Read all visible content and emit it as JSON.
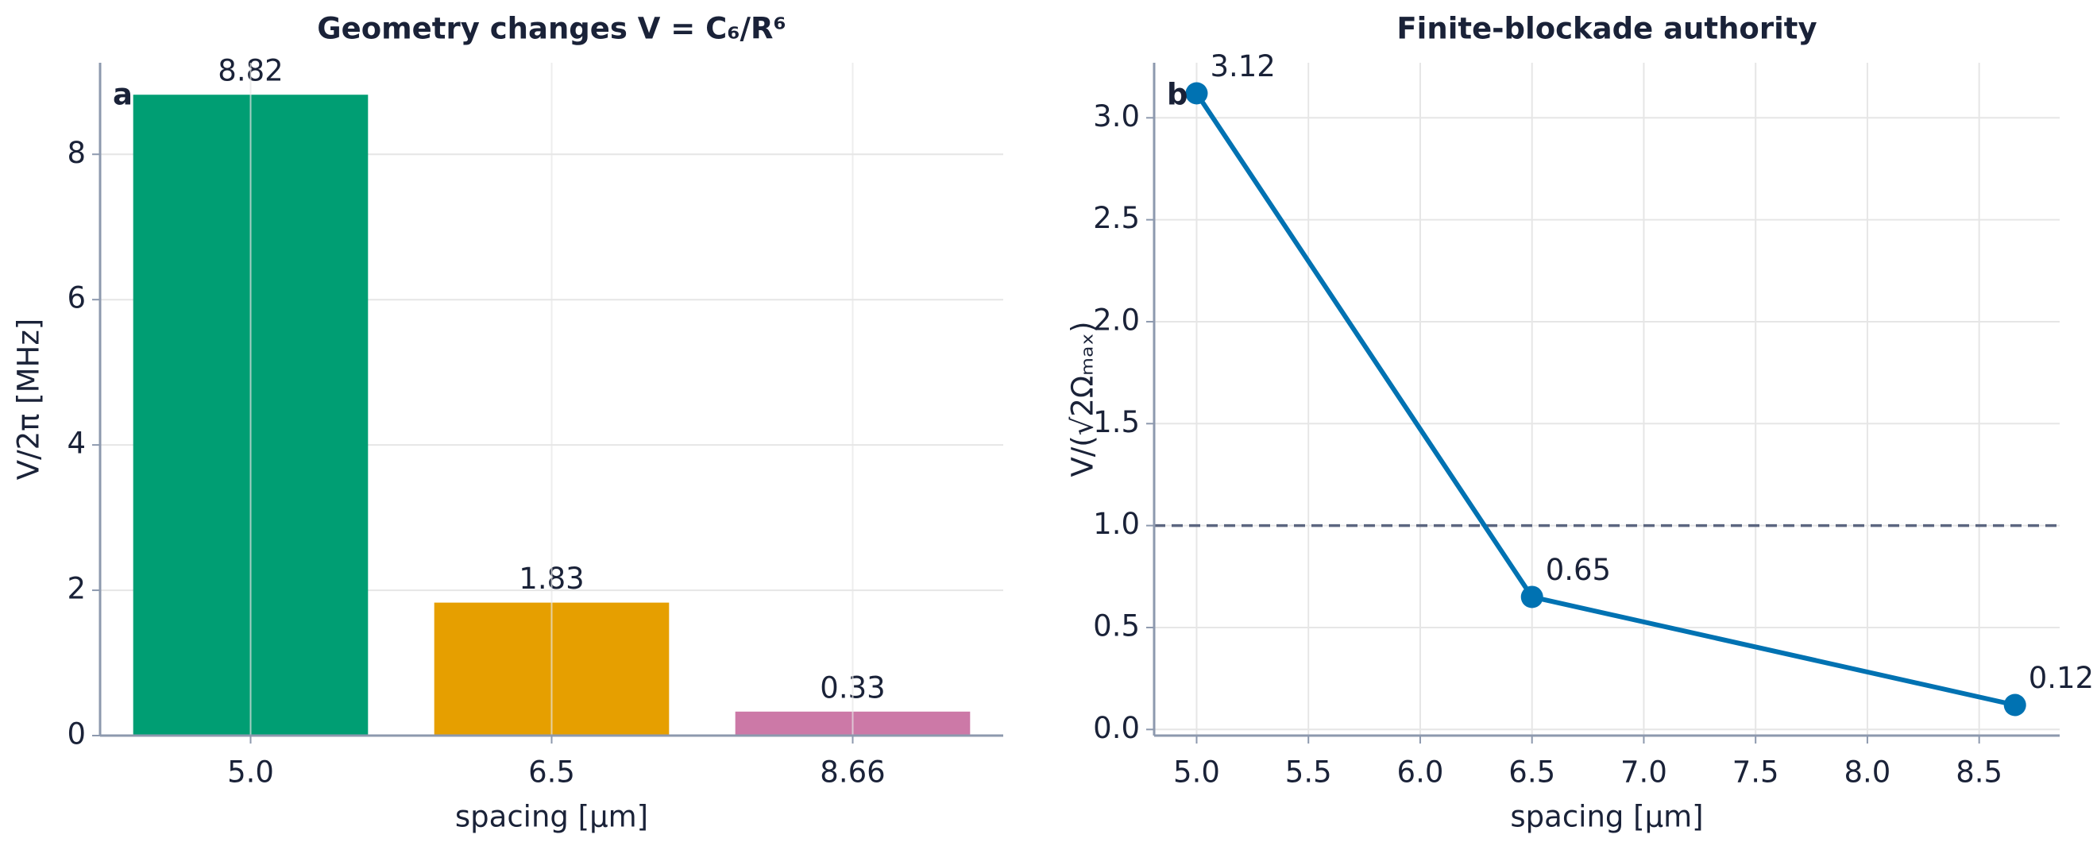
{
  "chart_data": [
    {
      "type": "bar",
      "title": "Geometry changes V = C₆/R⁶",
      "panel_label": "a",
      "categories": [
        "5.0",
        "6.5",
        "8.66"
      ],
      "values": [
        8.82,
        1.83,
        0.33
      ],
      "colors": [
        "#009e73",
        "#e69f00",
        "#cc79a7"
      ],
      "xlabel": "spacing [µm]",
      "ylabel": "V/2π [MHz]",
      "ylim": [
        0,
        9.26
      ],
      "yticks": [
        0,
        2,
        4,
        6,
        8
      ],
      "grid": true
    },
    {
      "type": "line",
      "title": "Finite-blockade authority",
      "panel_label": "b",
      "x": [
        5.0,
        6.5,
        8.66
      ],
      "values": [
        3.12,
        0.65,
        0.12
      ],
      "color": "#0072b2",
      "xlabel": "spacing [µm]",
      "ylabel": "V/(√2Ωₘₐₓ)",
      "xlim": [
        4.81,
        8.86
      ],
      "xticks": [
        {
          "value": 5.0,
          "label": "5.0"
        },
        5.5,
        {
          "value": 6.0,
          "label": "6.0"
        },
        6.5,
        {
          "value": 7.0,
          "label": "7.0"
        },
        7.5,
        {
          "value": 8.0,
          "label": "8.0"
        },
        8.5
      ],
      "ylim": [
        -0.03,
        3.27
      ],
      "yticks": [
        {
          "value": 0.0,
          "label": "0.0"
        },
        0.5,
        {
          "value": 1.0,
          "label": "1.0"
        },
        1.5,
        {
          "value": 2.0,
          "label": "2.0"
        },
        2.5,
        {
          "value": 3.0,
          "label": "3.0"
        }
      ],
      "hline": 1.0,
      "grid": true
    }
  ]
}
